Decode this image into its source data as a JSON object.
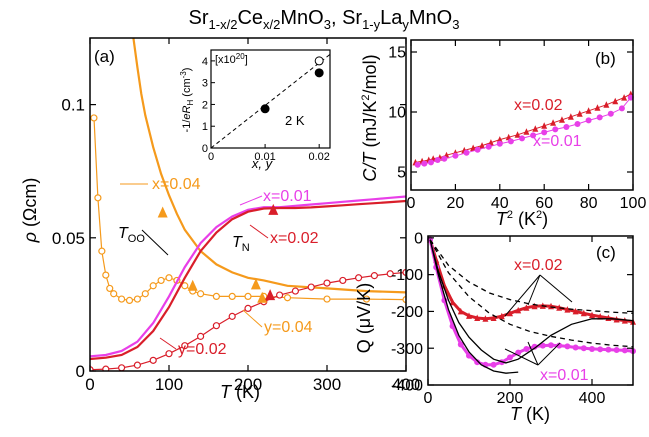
{
  "figure": {
    "title": "Sr1-x/2Cex/2MnO3, Sr1-yLayMnO3",
    "title_parts": {
      "a": "Sr",
      "a_sub": "1-x/2",
      "b": "Ce",
      "b_sub": "x/2",
      "c": "MnO",
      "c_sub": "3",
      "sep": ", ",
      "d": "Sr",
      "d_sub": "1-y",
      "e": "La",
      "e_sub": "y",
      "f": "MnO",
      "f_sub": "3"
    }
  },
  "chart_data": [
    {
      "panel": "a",
      "type": "line",
      "panel_label": "(a)",
      "xlabel": "T (K)",
      "ylabel": "ρ (Ωcm)",
      "xlim": [
        0,
        400
      ],
      "ylim": [
        0,
        0.125
      ],
      "xticks": [
        0,
        100,
        200,
        300,
        400
      ],
      "yticks": [
        0,
        0.05,
        0.1
      ],
      "ytick_labels": [
        "0",
        "0.05",
        "0.1"
      ],
      "series": [
        {
          "name": "x=0.04",
          "color": "#f59a1c",
          "style": "solid",
          "x": [
            55,
            60,
            65,
            70,
            80,
            90,
            100,
            110,
            120,
            140,
            160,
            180,
            200,
            220,
            250,
            300,
            350,
            400
          ],
          "y": [
            0.125,
            0.114,
            0.104,
            0.096,
            0.084,
            0.074,
            0.066,
            0.059,
            0.053,
            0.045,
            0.04,
            0.037,
            0.035,
            0.034,
            0.032,
            0.031,
            0.03,
            0.0295
          ]
        },
        {
          "name": "y=0.04",
          "color": "#f59a1c",
          "style": "open-circles",
          "x": [
            5,
            10,
            15,
            20,
            25,
            30,
            40,
            50,
            60,
            70,
            80,
            90,
            100,
            110,
            120,
            130,
            140,
            160,
            180,
            200,
            220,
            250,
            300,
            350,
            400
          ],
          "y": [
            0.095,
            0.065,
            0.045,
            0.036,
            0.031,
            0.029,
            0.027,
            0.0265,
            0.027,
            0.029,
            0.032,
            0.034,
            0.035,
            0.034,
            0.032,
            0.03,
            0.029,
            0.028,
            0.028,
            0.028,
            0.028,
            0.0275,
            0.027,
            0.027,
            0.0268
          ]
        },
        {
          "name": "x=0.01",
          "color": "#e83fe8",
          "style": "solid",
          "x": [
            0,
            20,
            40,
            60,
            80,
            100,
            120,
            140,
            160,
            180,
            200,
            220,
            240,
            260,
            280,
            300,
            320,
            340,
            360,
            380,
            400
          ],
          "y": [
            0.0055,
            0.006,
            0.0075,
            0.011,
            0.018,
            0.028,
            0.039,
            0.048,
            0.054,
            0.058,
            0.0605,
            0.0615,
            0.0615,
            0.062,
            0.0625,
            0.063,
            0.0635,
            0.064,
            0.0645,
            0.065,
            0.0655
          ]
        },
        {
          "name": "x=0.02",
          "color": "#d91e2a",
          "style": "solid",
          "x": [
            0,
            20,
            40,
            60,
            80,
            100,
            120,
            140,
            160,
            180,
            200,
            220,
            240,
            260,
            280,
            300,
            320,
            340,
            360,
            380,
            400
          ],
          "y": [
            0.0045,
            0.005,
            0.006,
            0.009,
            0.015,
            0.024,
            0.035,
            0.045,
            0.052,
            0.057,
            0.0598,
            0.061,
            0.0612,
            0.0612,
            0.0614,
            0.0618,
            0.0622,
            0.0626,
            0.063,
            0.0634,
            0.0638
          ]
        },
        {
          "name": "y=0.02",
          "color": "#d91e2a",
          "style": "open-circles",
          "x": [
            0,
            20,
            40,
            60,
            80,
            100,
            120,
            140,
            160,
            180,
            200,
            220,
            240,
            260,
            280,
            300,
            320,
            340,
            360,
            380,
            400
          ],
          "y": [
            0.0005,
            0.0007,
            0.0012,
            0.0022,
            0.004,
            0.0065,
            0.0095,
            0.013,
            0.017,
            0.0205,
            0.0235,
            0.026,
            0.0285,
            0.03,
            0.0315,
            0.033,
            0.034,
            0.035,
            0.0358,
            0.0365,
            0.037
          ]
        }
      ],
      "markers": [
        {
          "label": "T_OO",
          "x": 92,
          "y": 0.0595,
          "color": "#f59a1c"
        },
        {
          "x": 130,
          "y": 0.032,
          "color": "#f59a1c"
        },
        {
          "x": 210,
          "y": 0.0325,
          "color": "#f59a1c"
        },
        {
          "x": 218,
          "y": 0.0275,
          "color": "#f59a1c"
        },
        {
          "label": "T_N",
          "x": 232,
          "y": 0.0605,
          "color": "#d91e2a"
        },
        {
          "x": 228,
          "y": 0.0285,
          "color": "#d91e2a"
        }
      ],
      "annotations": {
        "x004": "x=0.04",
        "x001": "x=0.01",
        "x002": "x=0.02",
        "y002": "y=0.02",
        "y004": "y=0.04",
        "too": "T",
        "too_sub": "OO",
        "tn": "T",
        "tn_sub": "N"
      },
      "inset": {
        "xlabel": "x, y",
        "ylabel": "-1/eR_H (cm^-3)",
        "ylabel_parts": {
          "a": "-1/",
          "b": "e",
          "c": "R",
          "c_sub": "H",
          "d": " (cm",
          "d_sup": "-3",
          "e": ")"
        },
        "scale_label": "[x10^20]",
        "scale_parts": {
          "a": "[x10",
          "a_sup": "20",
          "b": "]"
        },
        "temp_label": "2 K",
        "xlim": [
          0,
          0.022
        ],
        "ylim": [
          0,
          4.5
        ],
        "xticks": [
          0,
          0.01,
          0.02
        ],
        "xtick_labels": [
          "0",
          "0.01",
          "0.02"
        ],
        "yticks": [
          0,
          1,
          2,
          3,
          4
        ],
        "points": [
          {
            "x": 0.01,
            "y": 1.8,
            "fill": "filled"
          },
          {
            "x": 0.02,
            "y": 3.45,
            "fill": "filled"
          },
          {
            "x": 0.02,
            "y": 4.0,
            "fill": "open"
          }
        ],
        "fit_line": {
          "x": [
            0,
            0.022
          ],
          "y": [
            0,
            4.3
          ]
        }
      }
    },
    {
      "panel": "b",
      "type": "scatter",
      "panel_label": "(b)",
      "xlabel": "T² (K²)",
      "xlabel_parts": {
        "a": "T",
        "a_sup": "2",
        "b": " (K",
        "b_sup": "2",
        "c": ")"
      },
      "ylabel": "C/T (mJ/K²/mol)",
      "ylabel_parts": {
        "a": "C/T",
        "b": " (mJ/K",
        "b_sup": "2",
        "c": "/mol)"
      },
      "xlim": [
        0,
        100
      ],
      "ylim": [
        3.5,
        16
      ],
      "xticks": [
        0,
        20,
        40,
        60,
        80,
        100
      ],
      "yticks": [
        5,
        10,
        15
      ],
      "series": [
        {
          "name": "x=0.02",
          "color": "#d91e2a",
          "marker": "triangle",
          "x": [
            2,
            5,
            8,
            10,
            13,
            16,
            20,
            24,
            28,
            32,
            36,
            40,
            44,
            48,
            52,
            56,
            60,
            64,
            68,
            72,
            76,
            80,
            84,
            88,
            92,
            96,
            99
          ],
          "y": [
            5.8,
            5.9,
            6.0,
            6.1,
            6.2,
            6.4,
            6.6,
            6.8,
            7.0,
            7.2,
            7.45,
            7.7,
            7.9,
            8.1,
            8.35,
            8.6,
            8.85,
            9.1,
            9.35,
            9.6,
            9.85,
            10.1,
            10.35,
            10.6,
            10.9,
            11.2,
            11.5
          ]
        },
        {
          "name": "x=0.01",
          "color": "#e83fe8",
          "marker": "circle",
          "x": [
            3,
            6,
            9,
            12,
            15,
            20,
            25,
            30,
            35,
            40,
            45,
            50,
            55,
            60,
            65,
            70,
            75,
            80,
            85,
            90,
            95,
            99
          ],
          "y": [
            5.6,
            5.7,
            5.8,
            6.0,
            6.1,
            6.35,
            6.6,
            6.85,
            7.1,
            7.35,
            7.55,
            7.8,
            8.05,
            8.3,
            8.55,
            8.75,
            9.0,
            9.3,
            9.55,
            9.85,
            10.3,
            11.2
          ]
        }
      ],
      "annotations": {
        "x002": "x=0.02",
        "x001": "x=0.01"
      }
    },
    {
      "panel": "c",
      "type": "line",
      "panel_label": "(c)",
      "xlabel": "T (K)",
      "ylabel": "Q (μV/K)",
      "xlim": [
        0,
        500
      ],
      "ylim": [
        -400,
        5
      ],
      "xticks": [
        0,
        200,
        400
      ],
      "yticks": [
        0,
        -100,
        -200,
        -300,
        -400
      ],
      "series": [
        {
          "name": "x=0.02",
          "color": "#d91e2a",
          "marker": "triangle",
          "x": [
            5,
            20,
            40,
            60,
            80,
            100,
            120,
            140,
            160,
            180,
            200,
            220,
            240,
            260,
            280,
            300,
            320,
            340,
            360,
            380,
            400,
            420,
            440,
            460,
            480,
            500
          ],
          "y": [
            -5,
            -60,
            -130,
            -175,
            -200,
            -212,
            -218,
            -220,
            -218,
            -213,
            -205,
            -197,
            -190,
            -186,
            -185,
            -186,
            -190,
            -195,
            -200,
            -205,
            -210,
            -214,
            -218,
            -222,
            -225,
            -228
          ]
        },
        {
          "name": "x=0.01",
          "color": "#e83fe8",
          "marker": "circle",
          "x": [
            5,
            20,
            40,
            60,
            80,
            100,
            120,
            140,
            160,
            180,
            200,
            220,
            240,
            260,
            280,
            300,
            320,
            340,
            360,
            380,
            400,
            420,
            440,
            460,
            480,
            500
          ],
          "y": [
            -5,
            -80,
            -170,
            -240,
            -290,
            -320,
            -338,
            -345,
            -345,
            -338,
            -325,
            -312,
            -302,
            -296,
            -293,
            -292,
            -293,
            -295,
            -298,
            -300,
            -302,
            -303,
            -304,
            -305,
            -306,
            -308
          ]
        },
        {
          "name": "fit-solid-upper",
          "color": "#000000",
          "style": "solid",
          "x": [
            5,
            25,
            50,
            75,
            100,
            130,
            160,
            190,
            220,
            260,
            300,
            350,
            400,
            450,
            500
          ],
          "y": [
            -5,
            -90,
            -170,
            -230,
            -270,
            -305,
            -330,
            -340,
            -330,
            -300,
            -265,
            -235,
            -220,
            -220,
            -225
          ]
        },
        {
          "name": "fit-solid-lower",
          "color": "#000000",
          "style": "solid",
          "x": [
            5,
            25,
            50,
            75,
            100,
            130,
            160,
            190,
            220
          ],
          "y": [
            -5,
            -100,
            -195,
            -265,
            -310,
            -345,
            -362,
            -368,
            -365
          ]
        },
        {
          "name": "fit-dashed-upper",
          "color": "#000000",
          "style": "dashed",
          "x": [
            5,
            50,
            100,
            150,
            200,
            250,
            300,
            350,
            400,
            450,
            500
          ],
          "y": [
            -5,
            -75,
            -120,
            -150,
            -168,
            -180,
            -188,
            -194,
            -198,
            -202,
            -205
          ]
        },
        {
          "name": "fit-dashed-lower",
          "color": "#000000",
          "style": "dashed",
          "x": [
            5,
            50,
            100,
            150,
            200,
            250,
            300,
            350,
            400,
            450,
            500
          ],
          "y": [
            -5,
            -95,
            -160,
            -205,
            -235,
            -255,
            -268,
            -278,
            -286,
            -292,
            -296
          ]
        }
      ],
      "annotations": {
        "x002": "x=0.02",
        "x001": "x=0.01"
      }
    }
  ]
}
